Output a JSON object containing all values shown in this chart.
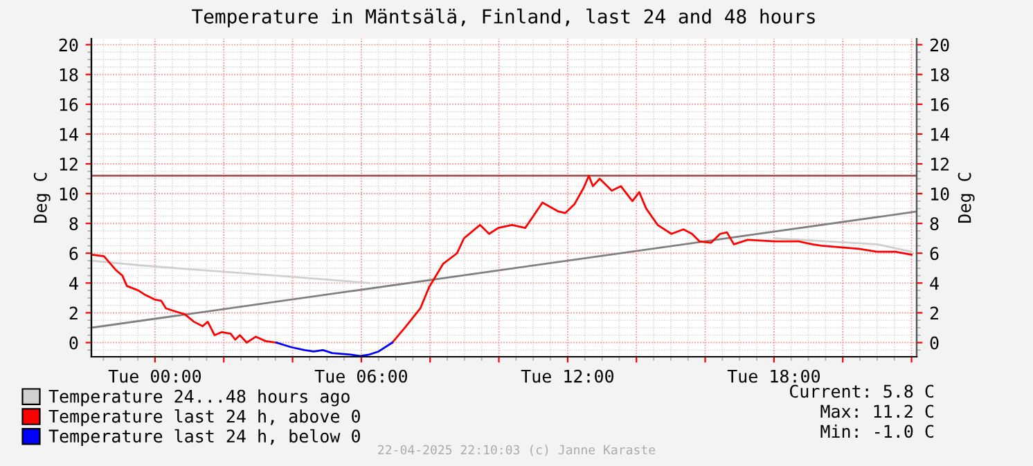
{
  "chart_data": {
    "type": "line",
    "title": "Temperature in Mäntsälä, Finland, last 24 and 48 hours",
    "ylabel": "Deg C",
    "y2label": "Deg C",
    "xlim": [
      "2025-04-21T22:09",
      "2025-04-22T22:09"
    ],
    "xticks": [
      {
        "value": "2025-04-22T00:00",
        "label": "Tue 00:00"
      },
      {
        "value": "2025-04-22T02:00",
        "label": null
      },
      {
        "value": "2025-04-22T04:00",
        "label": null
      },
      {
        "value": "2025-04-22T06:00",
        "label": "Tue 06:00"
      },
      {
        "value": "2025-04-22T08:00",
        "label": null
      },
      {
        "value": "2025-04-22T10:00",
        "label": null
      },
      {
        "value": "2025-04-22T12:00",
        "label": "Tue 12:00"
      },
      {
        "value": "2025-04-22T14:00",
        "label": null
      },
      {
        "value": "2025-04-22T16:00",
        "label": null
      },
      {
        "value": "2025-04-22T18:00",
        "label": "Tue 18:00"
      },
      {
        "value": "2025-04-22T20:00",
        "label": null
      },
      {
        "value": "2025-04-22T22:00",
        "label": null
      }
    ],
    "ylim": [
      -0.95,
      20.4
    ],
    "yticks": [
      0,
      2,
      4,
      6,
      8,
      10,
      12,
      14,
      16,
      18,
      20
    ],
    "y2lim": [
      -0.95,
      20.4
    ],
    "y2ticks": [
      0,
      2,
      4,
      6,
      8,
      10,
      12,
      14,
      16,
      18,
      20
    ],
    "grid": true,
    "legend": "bottom left",
    "line_style": "solid",
    "marker": "none",
    "series": [
      {
        "name": "Temperature 24...48 hours ago",
        "color": "#d0d0d0",
        "x": [
          "2025-04-21T22:09",
          "2025-04-21T23:31",
          "2025-04-22T01:08",
          "2025-04-22T03:32",
          "2025-04-22T06:14",
          "2025-04-22T06:30",
          "2025-04-22T18:02",
          "2025-04-22T21:00",
          "2025-04-22T22:00"
        ],
        "values": [
          5.5,
          5.2,
          4.9,
          4.5,
          4.0,
          null,
          7.0,
          6.6,
          6.1
        ]
      },
      {
        "type": "line",
        "color": "#808080",
        "x": [
          "2025-04-21T22:09",
          "2025-04-22T22:09"
        ],
        "values": [
          1.0,
          8.8
        ]
      },
      {
        "name": "Temperature last 24 h, above 0",
        "color": "#ff0000",
        "x": [
          "2025-04-21T22:10",
          "2025-04-21T22:31",
          "2025-04-21T22:51",
          "2025-04-21T23:03",
          "2025-04-21T23:11",
          "2025-04-21T23:31",
          "2025-04-21T23:43",
          "2025-04-21T23:59",
          "2025-04-22T00:11",
          "2025-04-22T00:19",
          "2025-04-22T00:35",
          "2025-04-22T00:52",
          "2025-04-22T01:08",
          "2025-04-22T01:23",
          "2025-04-22T01:32",
          "2025-04-22T01:44",
          "2025-04-22T01:56",
          "2025-04-22T02:12",
          "2025-04-22T02:20",
          "2025-04-22T02:28",
          "2025-04-22T02:40",
          "2025-04-22T02:56",
          "2025-04-22T03:13",
          "2025-04-22T03:32",
          "2025-04-22T03:57",
          "2025-04-22T06:30",
          "2025-04-22T06:54",
          "2025-04-22T07:18",
          "2025-04-22T07:43",
          "2025-04-22T07:58",
          "2025-04-22T08:23",
          "2025-04-22T08:47",
          "2025-04-22T08:59",
          "2025-04-22T09:27",
          "2025-04-22T09:43",
          "2025-04-22T09:59",
          "2025-04-22T10:23",
          "2025-04-22T10:46",
          "2025-04-22T11:16",
          "2025-04-22T11:44",
          "2025-04-22T11:56",
          "2025-04-22T12:12",
          "2025-04-22T12:28",
          "2025-04-22T12:37",
          "2025-04-22T12:44",
          "2025-04-22T12:56",
          "2025-04-22T13:17",
          "2025-04-22T13:33",
          "2025-04-22T13:53",
          "2025-04-22T14:05",
          "2025-04-22T14:17",
          "2025-04-22T14:37",
          "2025-04-22T15:01",
          "2025-04-22T15:22",
          "2025-04-22T15:37",
          "2025-04-22T15:50",
          "2025-04-22T16:10",
          "2025-04-22T16:26",
          "2025-04-22T16:38",
          "2025-04-22T16:50",
          "2025-04-22T17:14",
          "2025-04-22T18:02",
          "2025-04-22T18:43",
          "2025-04-22T19:07",
          "2025-04-22T19:23",
          "2025-04-22T19:55",
          "2025-04-22T20:28",
          "2025-04-22T21:00",
          "2025-04-22T21:32",
          "2025-04-22T22:00"
        ],
        "values": [
          5.9,
          5.8,
          4.9,
          4.5,
          3.8,
          3.5,
          3.2,
          2.9,
          2.8,
          2.3,
          2.1,
          1.9,
          1.4,
          1.1,
          1.4,
          0.5,
          0.7,
          0.6,
          0.2,
          0.5,
          0.0,
          0.4,
          0.1,
          0.0,
          null,
          null,
          0.0,
          1.1,
          2.3,
          3.7,
          5.3,
          6.0,
          7.0,
          7.9,
          7.3,
          7.7,
          7.9,
          7.7,
          9.4,
          8.8,
          8.7,
          9.3,
          10.4,
          11.2,
          10.5,
          11.0,
          10.2,
          10.5,
          9.5,
          10.1,
          9.0,
          7.9,
          7.3,
          7.6,
          7.3,
          6.8,
          6.7,
          7.3,
          7.4,
          6.6,
          6.9,
          6.8,
          6.8,
          6.6,
          6.5,
          6.4,
          6.3,
          6.1,
          6.1,
          5.9
        ]
      },
      {
        "name": "Temperature last 24 h, below 0",
        "color": "#0000ff",
        "x": [
          "2025-04-22T03:32",
          "2025-04-22T03:57",
          "2025-04-22T04:21",
          "2025-04-22T04:37",
          "2025-04-22T04:53",
          "2025-04-22T05:09",
          "2025-04-22T05:41",
          "2025-04-22T05:58",
          "2025-04-22T06:14",
          "2025-04-22T06:30",
          "2025-04-22T06:54"
        ],
        "values": [
          0.0,
          -0.3,
          -0.5,
          -0.6,
          -0.5,
          -0.7,
          -0.8,
          -0.9,
          -0.8,
          -0.6,
          0.0
        ]
      }
    ],
    "ref_lines": [
      {
        "axis": "y",
        "value": 11.2,
        "color": "#a05050"
      }
    ],
    "annotations": [
      "Current: 5.8 C",
      "Max: 11.2 C",
      "Min: -1.0 C",
      "22-04-2025 22:10:03 (c) Janne Karaste"
    ]
  }
}
